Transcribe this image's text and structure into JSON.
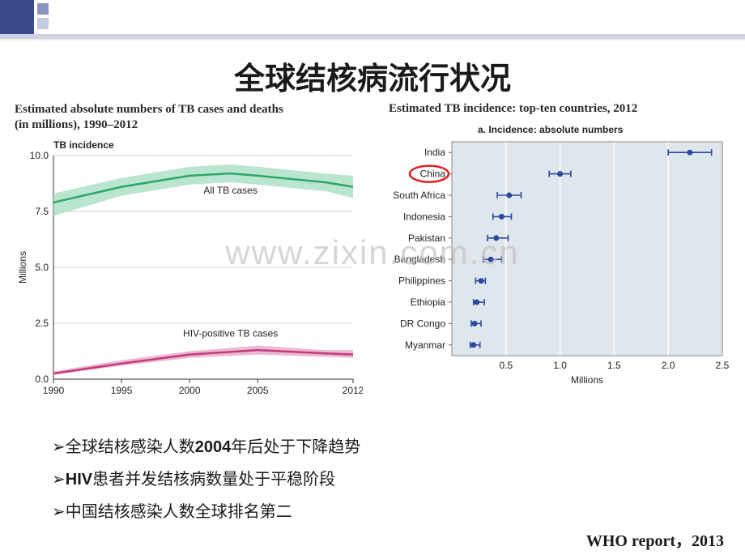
{
  "title": "全球结核病流行状况",
  "watermark": "www.zixin.com.cn",
  "source": "WHO report，2013",
  "left_chart": {
    "title_line1": "Estimated absolute numbers of TB cases and deaths",
    "title_line2": "(in millions), 1990–2012",
    "sub_label": "TB incidence",
    "y_label": "Millions",
    "y_ticks": [
      0,
      2.5,
      5.0,
      7.5,
      10.0
    ],
    "x_ticks": [
      1990,
      1995,
      2000,
      2005,
      2012
    ],
    "background_color": "#ffffff",
    "grid_line_color": "#d0d0d0",
    "series": [
      {
        "name": "All TB cases",
        "color_line": "#2fa66a",
        "color_band": "#a9dfc2",
        "label": "All TB cases",
        "points": [
          {
            "x": 1990,
            "y": 7.9,
            "lo": 7.3,
            "hi": 8.3
          },
          {
            "x": 1995,
            "y": 8.6,
            "lo": 8.2,
            "hi": 9.0
          },
          {
            "x": 2000,
            "y": 9.1,
            "lo": 8.7,
            "hi": 9.5
          },
          {
            "x": 2003,
            "y": 9.2,
            "lo": 8.8,
            "hi": 9.6
          },
          {
            "x": 2005,
            "y": 9.1,
            "lo": 8.7,
            "hi": 9.5
          },
          {
            "x": 2010,
            "y": 8.8,
            "lo": 8.4,
            "hi": 9.2
          },
          {
            "x": 2012,
            "y": 8.6,
            "lo": 8.1,
            "hi": 9.1
          }
        ]
      },
      {
        "name": "HIV-positive TB cases",
        "color_line": "#c43a7b",
        "color_band": "#e6a8c6",
        "label": "HIV-positive TB cases",
        "points": [
          {
            "x": 1990,
            "y": 0.25,
            "lo": 0.2,
            "hi": 0.35
          },
          {
            "x": 1995,
            "y": 0.7,
            "lo": 0.6,
            "hi": 0.85
          },
          {
            "x": 2000,
            "y": 1.1,
            "lo": 0.95,
            "hi": 1.25
          },
          {
            "x": 2005,
            "y": 1.3,
            "lo": 1.1,
            "hi": 1.5
          },
          {
            "x": 2010,
            "y": 1.15,
            "lo": 1.0,
            "hi": 1.3
          },
          {
            "x": 2012,
            "y": 1.1,
            "lo": 0.95,
            "hi": 1.3
          }
        ]
      }
    ]
  },
  "right_chart": {
    "title": "Estimated TB incidence: top-ten countries, 2012",
    "subtitle": "a. Incidence: absolute numbers",
    "x_label": "Millions",
    "x_ticks": [
      0.5,
      1.0,
      1.5,
      2.0,
      2.5
    ],
    "panel_bg": "#dfe6ec",
    "grid_color": "#ffffff",
    "point_color": "#2a4aa0",
    "countries": [
      {
        "label": "India",
        "v": 2.2,
        "lo": 2.0,
        "hi": 2.4
      },
      {
        "label": "China",
        "v": 1.0,
        "lo": 0.9,
        "hi": 1.1,
        "highlight": true
      },
      {
        "label": "South Africa",
        "v": 0.53,
        "lo": 0.42,
        "hi": 0.64
      },
      {
        "label": "Indonesia",
        "v": 0.46,
        "lo": 0.38,
        "hi": 0.55
      },
      {
        "label": "Pakistan",
        "v": 0.41,
        "lo": 0.33,
        "hi": 0.52
      },
      {
        "label": "Bangladesh",
        "v": 0.36,
        "lo": 0.29,
        "hi": 0.46
      },
      {
        "label": "Philippines",
        "v": 0.27,
        "lo": 0.22,
        "hi": 0.31
      },
      {
        "label": "Ethiopia",
        "v": 0.23,
        "lo": 0.2,
        "hi": 0.3
      },
      {
        "label": "DR Congo",
        "v": 0.21,
        "lo": 0.18,
        "hi": 0.27
      },
      {
        "label": "Myanmar",
        "v": 0.2,
        "lo": 0.17,
        "hi": 0.26
      }
    ]
  },
  "bullets": [
    {
      "pre": "全球结核感染人数",
      "bold": "2004",
      "post": "年后处于下降趋势"
    },
    {
      "preBold": "HIV",
      "post": "患者并发结核病数量处于平稳阶段"
    },
    {
      "text": "中国结核感染人数全球排名第二"
    }
  ]
}
